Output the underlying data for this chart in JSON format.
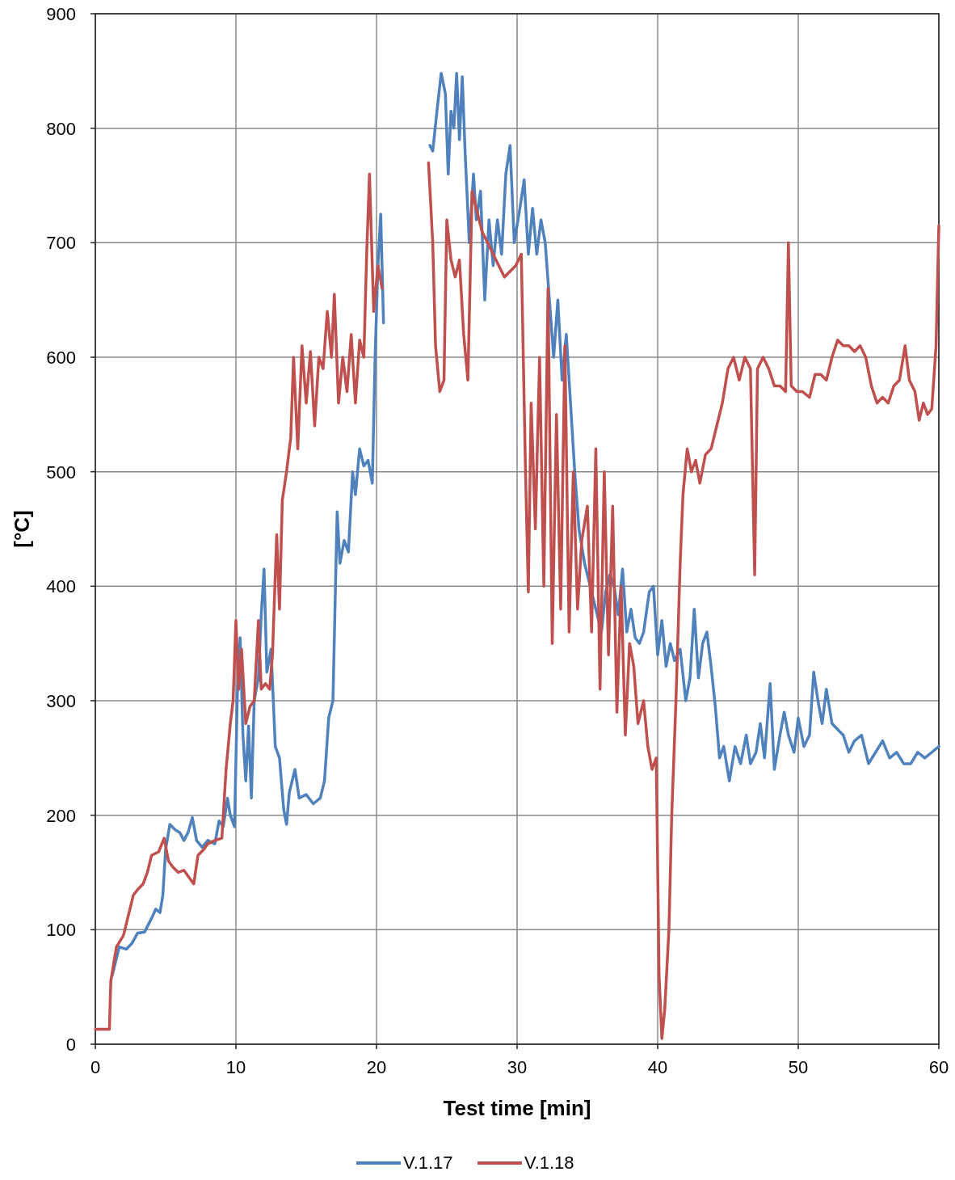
{
  "chart_data": {
    "type": "line",
    "xlabel": "Test time [min]",
    "ylabel": "[°C]",
    "xlim": [
      0,
      60
    ],
    "xticks": [
      0,
      10,
      20,
      30,
      40,
      50,
      60
    ],
    "ylim": [
      0,
      900
    ],
    "yticks": [
      0,
      100,
      200,
      300,
      400,
      500,
      600,
      700,
      800,
      900
    ],
    "grid": true,
    "legend": "bottom",
    "marker": "none",
    "line_style": "solid",
    "series": [
      {
        "name": "V.1.17",
        "color": "#4f81bd",
        "x": [
          1.2,
          1.7,
          2.2,
          2.6,
          3,
          3.5,
          4,
          4.3,
          4.6,
          4.8,
          5,
          5.3,
          5.7,
          6,
          6.3,
          6.6,
          6.9,
          7.2,
          7.6,
          8,
          8.5,
          8.8,
          9.1,
          9.4,
          9.6,
          9.9,
          10.1,
          10.3,
          10.5,
          10.7,
          10.9,
          11.1,
          11.3,
          11.6,
          11.8,
          12,
          12.2,
          12.5,
          12.8,
          13.1,
          13.4,
          13.6,
          13.8,
          14.2,
          14.5,
          15,
          15.5,
          16,
          16.3,
          16.6,
          16.9,
          17.2,
          17.4,
          17.7,
          18,
          18.3,
          18.5,
          18.8,
          19.1,
          19.4,
          19.7,
          19.9,
          20.1,
          20.3,
          20.5,
          22,
          23.8,
          24,
          24.3,
          24.6,
          24.9,
          25.1,
          25.3,
          25.5,
          25.7,
          25.9,
          26.1,
          26.3,
          26.6,
          26.9,
          27.1,
          27.4,
          27.7,
          28,
          28.3,
          28.6,
          28.9,
          29.2,
          29.5,
          29.8,
          30.2,
          30.5,
          30.8,
          31.1,
          31.4,
          31.7,
          32,
          32.3,
          32.6,
          32.9,
          33.2,
          33.5,
          33.8,
          34.1,
          34.4,
          34.8,
          35.2,
          35.6,
          36,
          36.3,
          36.6,
          36.9,
          37.2,
          37.5,
          37.8,
          38.1,
          38.4,
          38.7,
          39,
          39.4,
          39.7,
          40,
          40.3,
          40.6,
          40.9,
          41.2,
          41.6,
          42,
          42.3,
          42.6,
          42.9,
          43.2,
          43.5,
          43.8,
          44.1,
          44.4,
          44.7,
          45.1,
          45.5,
          45.9,
          46.3,
          46.6,
          47,
          47.3,
          47.6,
          48,
          48.3,
          48.7,
          49,
          49.3,
          49.7,
          50,
          50.4,
          50.8,
          51.1,
          51.4,
          51.7,
          52,
          52.4,
          52.8,
          53.2,
          53.6,
          54,
          54.5,
          55,
          55.5,
          56,
          56.5,
          57,
          57.5,
          58,
          58.5,
          59,
          59.5,
          60
        ],
        "values": [
          60,
          85,
          83,
          88,
          97,
          98,
          110,
          118,
          115,
          130,
          170,
          192,
          187,
          185,
          178,
          185,
          198,
          178,
          172,
          178,
          175,
          195,
          190,
          215,
          200,
          190,
          305,
          355,
          270,
          230,
          278,
          215,
          300,
          320,
          375,
          415,
          325,
          345,
          260,
          250,
          205,
          192,
          220,
          240,
          215,
          218,
          210,
          215,
          230,
          285,
          300,
          465,
          420,
          440,
          430,
          500,
          480,
          520,
          505,
          510,
          490,
          600,
          680,
          725,
          630,
          null,
          785,
          780,
          815,
          848,
          830,
          760,
          815,
          800,
          848,
          790,
          845,
          780,
          700,
          760,
          720,
          745,
          650,
          720,
          680,
          720,
          690,
          760,
          785,
          700,
          730,
          755,
          690,
          730,
          690,
          720,
          700,
          650,
          600,
          650,
          580,
          620,
          560,
          500,
          450,
          420,
          400,
          380,
          360,
          395,
          410,
          400,
          375,
          415,
          360,
          380,
          355,
          350,
          360,
          395,
          400,
          340,
          370,
          330,
          350,
          335,
          345,
          300,
          320,
          380,
          320,
          350,
          360,
          330,
          295,
          250,
          260,
          230,
          260,
          245,
          270,
          245,
          255,
          280,
          250,
          315,
          240,
          270,
          290,
          270,
          255,
          285,
          260,
          270,
          325,
          300,
          280,
          310,
          280,
          275,
          270,
          255,
          265,
          270,
          245,
          255,
          265,
          250,
          255,
          245,
          245,
          255,
          250,
          255,
          260
        ]
      },
      {
        "name": "V.1.18",
        "color": "#c0504d",
        "x": [
          0,
          1,
          1.1,
          1.5,
          2,
          2.3,
          2.7,
          3,
          3.4,
          3.7,
          4,
          4.5,
          4.9,
          5.2,
          5.5,
          5.9,
          6.3,
          6.7,
          7,
          7.3,
          7.7,
          8,
          8.5,
          9,
          9.3,
          9.6,
          9.8,
          10,
          10.2,
          10.4,
          10.7,
          11,
          11.3,
          11.6,
          11.8,
          12.1,
          12.4,
          12.6,
          12.9,
          13.1,
          13.3,
          13.6,
          13.9,
          14.1,
          14.4,
          14.7,
          15,
          15.3,
          15.6,
          15.9,
          16.2,
          16.5,
          16.8,
          17,
          17.3,
          17.6,
          17.9,
          18.2,
          18.5,
          18.8,
          19.1,
          19.3,
          19.5,
          19.8,
          20.1,
          20.4,
          22,
          23.7,
          24,
          24.2,
          24.5,
          24.8,
          25,
          25.3,
          25.6,
          25.9,
          26.2,
          26.5,
          26.8,
          27.1,
          27.5,
          27.9,
          28.3,
          28.7,
          29.1,
          29.5,
          29.9,
          30.3,
          30.6,
          30.8,
          31,
          31.3,
          31.6,
          31.9,
          32.2,
          32.5,
          32.8,
          33.1,
          33.4,
          33.7,
          34,
          34.3,
          34.6,
          35,
          35.3,
          35.6,
          35.9,
          36.2,
          36.5,
          36.8,
          37.1,
          37.4,
          37.7,
          38,
          38.3,
          38.6,
          39,
          39.3,
          39.6,
          39.9,
          40.1,
          40.3,
          40.5,
          40.8,
          41,
          41.3,
          41.6,
          41.8,
          42.1,
          42.4,
          42.7,
          43,
          43.4,
          43.8,
          44.2,
          44.6,
          45,
          45.4,
          45.8,
          46.2,
          46.6,
          46.9,
          47.1,
          47.5,
          47.9,
          48.3,
          48.7,
          49.1,
          49.3,
          49.5,
          49.9,
          50.3,
          50.8,
          51.2,
          51.6,
          52,
          52.4,
          52.8,
          53.2,
          53.6,
          54,
          54.4,
          54.8,
          55.2,
          55.6,
          56,
          56.4,
          56.8,
          57.2,
          57.6,
          57.9,
          58.3,
          58.6,
          58.9,
          59.2,
          59.5,
          59.8,
          60
        ],
        "values": [
          13,
          13,
          55,
          85,
          95,
          110,
          130,
          135,
          140,
          150,
          165,
          168,
          180,
          160,
          155,
          150,
          152,
          145,
          140,
          165,
          170,
          175,
          178,
          180,
          240,
          280,
          300,
          370,
          310,
          345,
          280,
          295,
          300,
          370,
          310,
          315,
          310,
          340,
          445,
          380,
          475,
          500,
          530,
          600,
          520,
          610,
          560,
          605,
          540,
          600,
          590,
          640,
          600,
          655,
          560,
          600,
          570,
          620,
          560,
          615,
          600,
          690,
          760,
          640,
          680,
          660,
          null,
          770,
          700,
          610,
          570,
          580,
          720,
          685,
          670,
          685,
          620,
          580,
          745,
          730,
          710,
          700,
          690,
          680,
          670,
          675,
          680,
          690,
          500,
          395,
          560,
          450,
          600,
          400,
          660,
          350,
          550,
          380,
          610,
          360,
          500,
          380,
          440,
          470,
          360,
          520,
          310,
          500,
          340,
          470,
          290,
          400,
          270,
          350,
          330,
          280,
          300,
          260,
          240,
          250,
          60,
          5,
          30,
          100,
          200,
          300,
          420,
          480,
          520,
          500,
          510,
          490,
          515,
          520,
          540,
          560,
          590,
          600,
          580,
          600,
          590,
          410,
          590,
          600,
          590,
          575,
          575,
          570,
          700,
          575,
          570,
          570,
          565,
          585,
          585,
          580,
          600,
          615,
          610,
          610,
          605,
          610,
          600,
          575,
          560,
          565,
          560,
          575,
          580,
          610,
          580,
          570,
          545,
          560,
          550,
          555,
          610,
          715
        ]
      }
    ]
  }
}
